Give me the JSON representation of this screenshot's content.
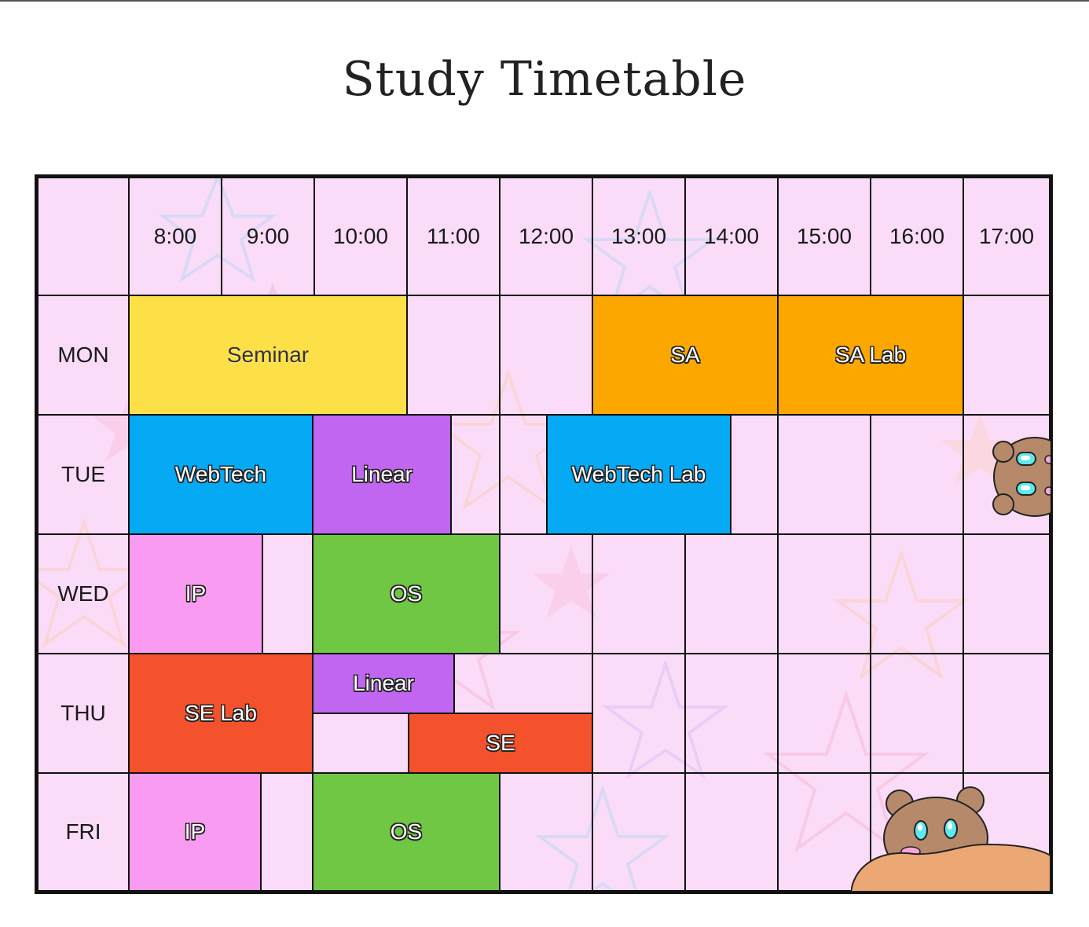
{
  "title": "Study Timetable",
  "times": [
    "8:00",
    "9:00",
    "10:00",
    "11:00",
    "12:00",
    "13:00",
    "14:00",
    "15:00",
    "16:00",
    "17:00"
  ],
  "days": [
    "MON",
    "TUE",
    "WED",
    "THU",
    "FRI"
  ],
  "colors": {
    "background": "#fbdcf8",
    "seminar": "#fde047",
    "sa": "#fba700",
    "webtech": "#05a9f4",
    "linear": "#c066f0",
    "ip": "#f99bf0",
    "os": "#6fc743",
    "se": "#f4522c",
    "bear": "#b5896a",
    "blanket": "#eba774"
  },
  "classes": {
    "mon": {
      "seminar": "Seminar",
      "sa": "SA",
      "sa_lab": "SA Lab"
    },
    "tue": {
      "webtech": "WebTech",
      "linear": "Linear",
      "webtech_lab": "WebTech Lab"
    },
    "wed": {
      "ip": "IP",
      "os": "OS"
    },
    "thu": {
      "se_lab": "SE Lab",
      "linear": "Linear",
      "se": "SE"
    },
    "fri": {
      "ip": "IP",
      "os": "OS"
    }
  },
  "decorations": [
    "star-doodles",
    "bear-icon",
    "bear-peeking-icon"
  ]
}
